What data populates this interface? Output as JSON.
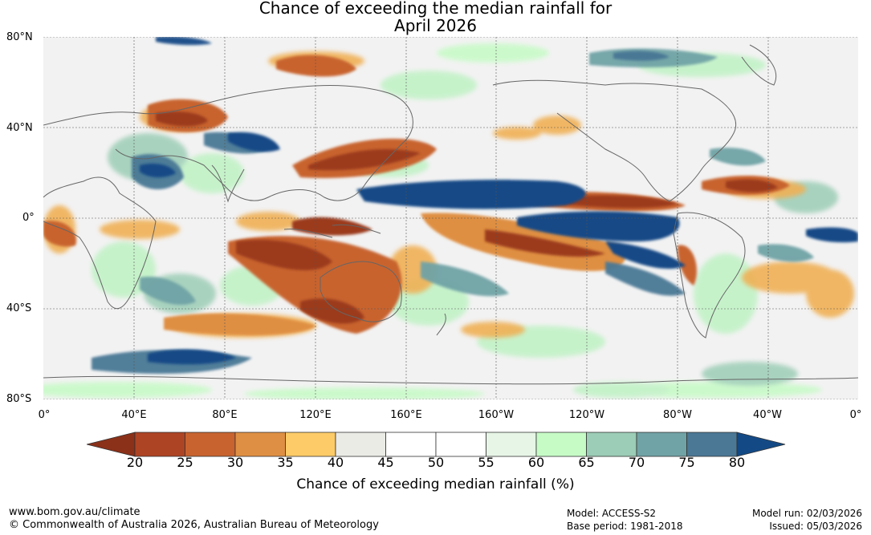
{
  "title": {
    "line1": "Chance of exceeding the median rainfall for",
    "line2": "April 2026"
  },
  "map": {
    "lat_labels": [
      "80°N",
      "40°N",
      "0°",
      "40°S",
      "80°S"
    ],
    "lon_labels": [
      "0°",
      "40°E",
      "80°E",
      "120°E",
      "160°E",
      "160°W",
      "120°W",
      "80°W",
      "40°W",
      "0°"
    ]
  },
  "colorbar": {
    "label": "Chance of exceeding median rainfall (%)",
    "ticks": [
      "20",
      "25",
      "30",
      "35",
      "40",
      "45",
      "50",
      "55",
      "60",
      "65",
      "70",
      "75",
      "80"
    ],
    "low_extend_color": "#8b3019",
    "high_extend_color": "#134a86",
    "colors": [
      "#ad4423",
      "#c8632f",
      "#df8f43",
      "#fdcb68",
      "#ebebe6",
      "#ffffff",
      "#ffffff",
      "#e6f5e6",
      "#c6fbc6",
      "#9ccdb6",
      "#70a3a6",
      "#4a7895"
    ]
  },
  "colors": {
    "ocean_background": "#f2f2f2",
    "dry_strong": "#9b3a1e",
    "dry": "#c8632f",
    "dry_light": "#f0b054",
    "wet_light": "#bff2c4",
    "wet": "#7fb8a8",
    "wet_strong": "#134a86",
    "coastline": "#666666"
  },
  "footer": {
    "url": "www.bom.gov.au/climate",
    "copyright": "© Commonwealth of Australia 2026, Australian Bureau of Meteorology",
    "model": "Model: ACCESS-S2",
    "base_period": "Base period: 1981-2018",
    "model_run": "Model run: 02/03/2026",
    "issued": "Issued: 05/03/2026"
  }
}
